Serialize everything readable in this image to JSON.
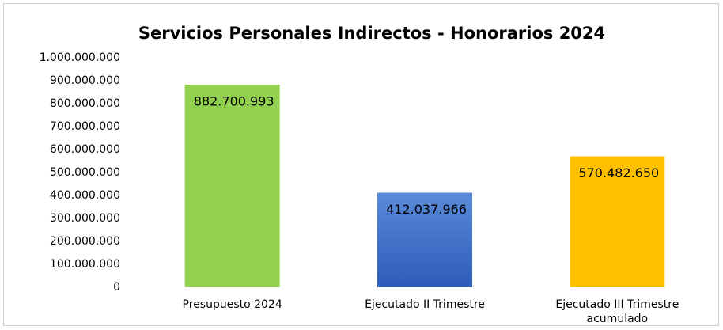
{
  "chart_data": {
    "type": "bar",
    "title": "Servicios Personales Indirectos - Honorarios 2024",
    "categories": [
      "Presupuesto 2024",
      "Ejecutado II Trimestre",
      "Ejecutado III Trimestre acumulado"
    ],
    "values": [
      882700993,
      412037966,
      570482650
    ],
    "value_labels": [
      "882.700.993",
      "412.037.966",
      "570.482.650"
    ],
    "colors": [
      "#92d050",
      "#4472c4",
      "#ffc000"
    ],
    "ylim": [
      0,
      1000000000
    ],
    "yticks": [
      0,
      {
        "value": 100000000,
        "label": "100.000.000"
      },
      {
        "value": 200000000,
        "label": "200.000.000"
      },
      {
        "value": 300000000,
        "label": "300.000.000"
      },
      {
        "value": 400000000,
        "label": "400.000.000"
      },
      {
        "value": 500000000,
        "label": "500.000.000"
      },
      {
        "value": 600000000,
        "label": "600.000.000"
      },
      {
        "value": 700000000,
        "label": "700.000.000"
      },
      {
        "value": 800000000,
        "label": "800.000.000"
      },
      {
        "value": 900000000,
        "label": "900.000.000"
      },
      {
        "value": 1000000000,
        "label": "1.000.000.000"
      }
    ],
    "grid": false
  }
}
